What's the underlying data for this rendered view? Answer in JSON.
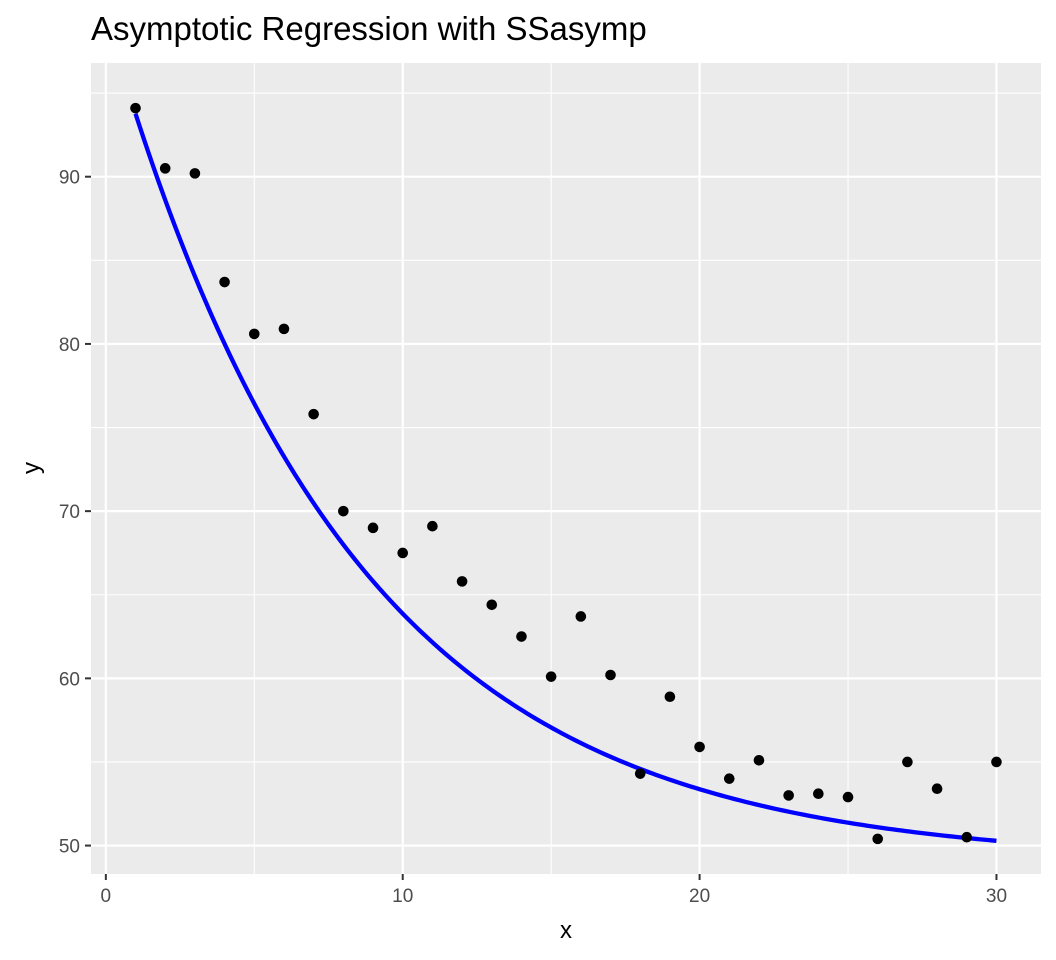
{
  "chart_data": {
    "type": "scatter",
    "title": "Asymptotic Regression with SSasymp",
    "xlabel": "x",
    "ylabel": "y",
    "xlim": [
      -0.5,
      31.5
    ],
    "ylim": [
      48.3,
      96.8
    ],
    "x_ticks": [
      0,
      10,
      20,
      30
    ],
    "x_tick_labels": [
      "0",
      "10",
      "20",
      "30"
    ],
    "y_ticks": [
      50,
      60,
      70,
      80,
      90
    ],
    "y_tick_labels": [
      "50",
      "60",
      "70",
      "80",
      "90"
    ],
    "grid": true,
    "panel_background": "#ebebeb",
    "points_color": "#000000",
    "series": [
      {
        "kind": "points",
        "x": [
          1,
          2,
          3,
          4,
          5,
          6,
          7,
          8,
          9,
          10,
          11,
          12,
          13,
          14,
          15,
          16,
          17,
          18,
          19,
          20,
          21,
          22,
          23,
          24,
          25,
          26,
          27,
          28,
          29,
          30
        ],
        "y": [
          94.1,
          90.5,
          90.2,
          83.7,
          80.6,
          80.9,
          75.8,
          70.0,
          69.0,
          67.5,
          69.1,
          65.8,
          64.4,
          62.5,
          60.1,
          63.7,
          60.2,
          54.3,
          58.9,
          55.9,
          54.0,
          55.1,
          53.0,
          53.1,
          52.9,
          50.4,
          55.0,
          53.4,
          50.5,
          55.0
        ]
      },
      {
        "kind": "fitted-curve",
        "color": "#0000ff",
        "model": "SSasymp",
        "Asym": 49.0,
        "R0": 99.6,
        "lrc": -2.1,
        "x_range": [
          1,
          30
        ]
      }
    ]
  }
}
